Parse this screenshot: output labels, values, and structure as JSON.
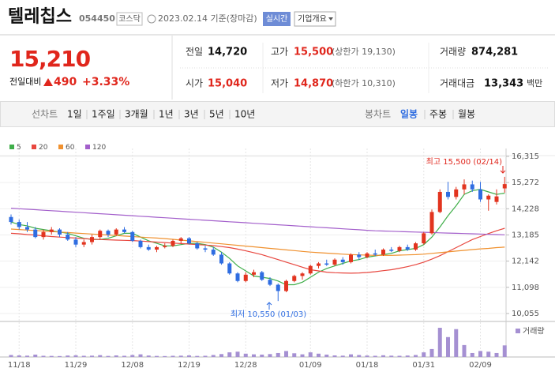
{
  "header": {
    "name": "텔레칩스",
    "code": "054450",
    "market": "코스닥",
    "date": "2023.02.14 기준(장마감)",
    "realtime": "실시간",
    "company": "기업개요"
  },
  "price": {
    "current": "15,210",
    "change_label": "전일대비",
    "change": "490",
    "rate": "+3.33%"
  },
  "quote": {
    "rows": [
      [
        {
          "label": "전일",
          "value": "14,720"
        },
        {
          "label": "고가",
          "value": "15,500",
          "note": "(상한가 19,130)"
        },
        {
          "label": "거래량",
          "value": "874,281"
        }
      ],
      [
        {
          "label": "시가",
          "value": "15,040"
        },
        {
          "label": "저가",
          "value": "14,870",
          "note": "(하한가 10,310)"
        },
        {
          "label": "거래대금",
          "value": "13,343",
          "unit": "백만"
        }
      ]
    ]
  },
  "tabs": {
    "line_label": "선차트",
    "line": [
      "1일",
      "1주일",
      "3개월",
      "1년",
      "3년",
      "5년",
      "10년"
    ],
    "candle_label": "봉차트",
    "candle": [
      "일봉",
      "주봉",
      "월봉"
    ],
    "selected_candle": 0
  },
  "chart_data": {
    "type": "candlestick",
    "categories": [
      null,
      "11/18",
      null,
      null,
      null,
      null,
      null,
      null,
      "11/29",
      null,
      null,
      null,
      null,
      null,
      null,
      "12/08",
      null,
      null,
      null,
      null,
      null,
      null,
      "12/19",
      null,
      null,
      null,
      null,
      null,
      null,
      "12/28",
      null,
      null,
      null,
      null,
      null,
      null,
      null,
      "01/09",
      null,
      null,
      null,
      null,
      null,
      null,
      "01/18",
      null,
      null,
      null,
      null,
      null,
      null,
      "01/31",
      null,
      null,
      null,
      null,
      null,
      null,
      "02/09",
      null,
      null,
      null
    ],
    "open": [
      13900,
      13700,
      13500,
      13400,
      13100,
      13300,
      13400,
      13200,
      13000,
      12800,
      12900,
      13100,
      13350,
      13200,
      13400,
      13300,
      12950,
      12700,
      12600,
      12700,
      12750,
      12950,
      13050,
      12850,
      12650,
      12600,
      12400,
      12050,
      11650,
      11350,
      11600,
      11700,
      11400,
      11200,
      10950,
      11350,
      11550,
      11650,
      11950,
      12050,
      12000,
      12200,
      12100,
      12400,
      12300,
      12450,
      12400,
      12600,
      12550,
      12700,
      12600,
      12850,
      13250,
      14100,
      14900,
      14700,
      15000,
      15200,
      15000,
      14600,
      14500,
      15040
    ],
    "high": [
      14000,
      13800,
      13700,
      13500,
      13400,
      13500,
      13450,
      13300,
      13100,
      13000,
      13200,
      13400,
      13400,
      13450,
      13500,
      13350,
      13000,
      12800,
      12750,
      12850,
      13000,
      13100,
      13100,
      12900,
      12750,
      12700,
      12500,
      12100,
      11700,
      11700,
      11800,
      11750,
      11500,
      11250,
      11400,
      11600,
      11700,
      12000,
      12100,
      12200,
      12250,
      12300,
      12450,
      12500,
      12500,
      12600,
      12650,
      12700,
      12750,
      12800,
      12900,
      13300,
      14200,
      15000,
      15300,
      15100,
      15400,
      15350,
      15300,
      14800,
      15000,
      15500
    ],
    "low": [
      13600,
      13400,
      13300,
      13050,
      13000,
      13200,
      13100,
      12950,
      12700,
      12700,
      12800,
      13000,
      13100,
      13150,
      13250,
      12900,
      12650,
      12550,
      12500,
      12650,
      12700,
      12850,
      12800,
      12600,
      12500,
      12350,
      12000,
      11600,
      11300,
      11300,
      11500,
      11350,
      11150,
      10550,
      10900,
      11300,
      11400,
      11600,
      11850,
      11950,
      11950,
      12000,
      12050,
      12200,
      12250,
      12350,
      12350,
      12500,
      12500,
      12550,
      12550,
      12800,
      13200,
      14050,
      14600,
      14600,
      14800,
      14900,
      14500,
      14150,
      14400,
      14870
    ],
    "close": [
      13700,
      13500,
      13400,
      13100,
      13300,
      13400,
      13200,
      13000,
      12800,
      12900,
      13100,
      13350,
      13200,
      13400,
      13300,
      12950,
      12700,
      12600,
      12700,
      12750,
      12950,
      13050,
      12850,
      12650,
      12600,
      12400,
      12050,
      11650,
      11350,
      11600,
      11700,
      11400,
      11200,
      10950,
      11350,
      11550,
      11650,
      11950,
      12050,
      12000,
      12200,
      12100,
      12400,
      12300,
      12450,
      12400,
      12600,
      12550,
      12700,
      12600,
      12850,
      13250,
      14100,
      14900,
      14700,
      15000,
      15200,
      15000,
      14600,
      14750,
      14720,
      15210
    ],
    "up_color": "#e2341f",
    "down_color": "#2f6de1",
    "series": [
      {
        "name": "5",
        "color": "#3fae49",
        "values": [
          13700,
          13600,
          13550,
          13450,
          13400,
          13350,
          13300,
          13250,
          13150,
          13050,
          13000,
          13000,
          13050,
          13150,
          13250,
          13250,
          13100,
          12950,
          12850,
          12750,
          12750,
          12800,
          12850,
          12850,
          12800,
          12700,
          12500,
          12250,
          11950,
          11750,
          11550,
          11500,
          11450,
          11350,
          11200,
          11200,
          11300,
          11500,
          11700,
          11850,
          11950,
          12050,
          12150,
          12200,
          12300,
          12350,
          12400,
          12450,
          12550,
          12600,
          12650,
          12800,
          13100,
          13500,
          13950,
          14350,
          14800,
          14950,
          15000,
          14900,
          14800,
          14850
        ]
      },
      {
        "name": "20",
        "color": "#e8473f",
        "values": [
          13250,
          13230,
          13200,
          13180,
          13150,
          13120,
          13100,
          13080,
          13060,
          13040,
          13020,
          13000,
          12990,
          12980,
          12970,
          12960,
          12940,
          12920,
          12900,
          12880,
          12860,
          12840,
          12820,
          12800,
          12780,
          12760,
          12720,
          12680,
          12620,
          12550,
          12480,
          12400,
          12300,
          12200,
          12100,
          12000,
          11900,
          11800,
          11750,
          11700,
          11680,
          11670,
          11660,
          11670,
          11690,
          11720,
          11760,
          11800,
          11860,
          11920,
          12000,
          12100,
          12220,
          12360,
          12520,
          12680,
          12840,
          13000,
          13120,
          13240,
          13350,
          13450
        ]
      },
      {
        "name": "60",
        "color": "#f0912f",
        "values": [
          13420,
          13400,
          13380,
          13360,
          13340,
          13320,
          13300,
          13280,
          13260,
          13240,
          13220,
          13200,
          13180,
          13160,
          13140,
          13120,
          13100,
          13080,
          13060,
          13040,
          13010,
          12980,
          12950,
          12920,
          12890,
          12860,
          12830,
          12800,
          12770,
          12740,
          12710,
          12680,
          12650,
          12620,
          12590,
          12560,
          12530,
          12500,
          12480,
          12460,
          12440,
          12420,
          12400,
          12390,
          12380,
          12370,
          12370,
          12370,
          12380,
          12390,
          12400,
          12420,
          12450,
          12480,
          12510,
          12540,
          12570,
          12600,
          12630,
          12650,
          12680,
          12700
        ]
      },
      {
        "name": "120",
        "color": "#a35fcb",
        "values": [
          14250,
          14230,
          14210,
          14190,
          14170,
          14150,
          14130,
          14110,
          14090,
          14070,
          14050,
          14030,
          14010,
          13990,
          13970,
          13950,
          13930,
          13910,
          13890,
          13870,
          13850,
          13830,
          13810,
          13790,
          13770,
          13750,
          13730,
          13710,
          13690,
          13670,
          13650,
          13630,
          13610,
          13590,
          13570,
          13550,
          13530,
          13510,
          13490,
          13470,
          13450,
          13430,
          13410,
          13390,
          13370,
          13350,
          13340,
          13330,
          13320,
          13310,
          13300,
          13290,
          13280,
          13270,
          13260,
          13250,
          13240,
          13230,
          13220,
          13210,
          13200,
          13190
        ]
      }
    ],
    "volume": {
      "name": "거래량",
      "color": "#a590d2",
      "ylim": [
        0,
        2500000
      ],
      "values": [
        150000,
        120000,
        100000,
        180000,
        90000,
        80000,
        70000,
        110000,
        130000,
        90000,
        100000,
        140000,
        80000,
        120000,
        90000,
        150000,
        200000,
        110000,
        80000,
        70000,
        90000,
        100000,
        120000,
        80000,
        90000,
        150000,
        220000,
        350000,
        400000,
        250000,
        200000,
        180000,
        220000,
        300000,
        450000,
        280000,
        200000,
        350000,
        250000,
        180000,
        120000,
        100000,
        200000,
        150000,
        110000,
        90000,
        130000,
        100000,
        90000,
        110000,
        150000,
        350000,
        600000,
        2200000,
        1500000,
        2100000,
        900000,
        300000,
        450000,
        400000,
        300000,
        874281
      ]
    },
    "ylim": [
      9800,
      16630
    ],
    "yticks": [
      {
        "value": 10055,
        "label": "10,055"
      },
      {
        "value": 11098,
        "label": "11,098"
      },
      {
        "value": 12142,
        "label": "12,142"
      },
      {
        "value": 13185,
        "label": "13,185"
      },
      {
        "value": 14228,
        "label": "14,228"
      },
      {
        "value": 15272,
        "label": "15,272"
      },
      {
        "value": 16315,
        "label": "16,315"
      }
    ],
    "grid": true,
    "high_label": "최고 15,500 (02/14)",
    "low_label": "최저 10,550 (01/03)"
  }
}
